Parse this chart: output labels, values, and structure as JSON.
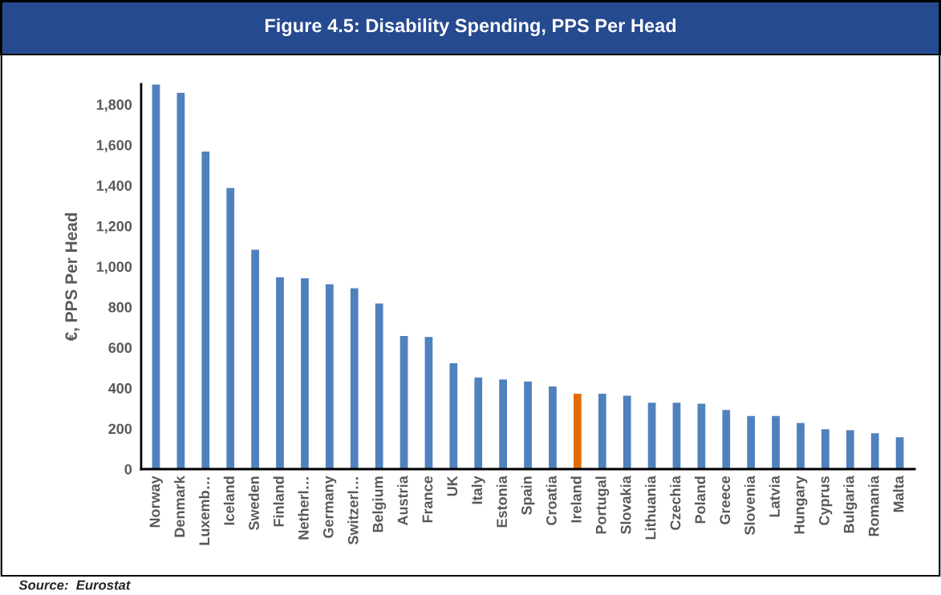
{
  "chart_data": {
    "type": "bar",
    "title": "Figure 4.5: Disability Spending, PPS Per Head",
    "ylabel": "€, PPS Per Head",
    "categories": [
      "Norway",
      "Denmark",
      "Luxemb…",
      "Iceland",
      "Sweden",
      "Finland",
      "Netherl…",
      "Germany",
      "Switzerl…",
      "Belgium",
      "Austria",
      "France",
      "UK",
      "Italy",
      "Estonia",
      "Spain",
      "Croatia",
      "Ireland",
      "Portugal",
      "Slovakia",
      "Lithuania",
      "Czechia",
      "Poland",
      "Greece",
      "Slovenia",
      "Latvia",
      "Hungary",
      "Cyprus",
      "Bulgaria",
      "Romania",
      "Malta"
    ],
    "values": [
      1900,
      1860,
      1570,
      1390,
      1085,
      950,
      945,
      915,
      895,
      820,
      660,
      655,
      525,
      455,
      445,
      435,
      410,
      375,
      375,
      365,
      330,
      330,
      325,
      295,
      265,
      265,
      230,
      200,
      195,
      180,
      160
    ],
    "colors": [
      "#4f81bd",
      "#4f81bd",
      "#4f81bd",
      "#4f81bd",
      "#4f81bd",
      "#4f81bd",
      "#4f81bd",
      "#4f81bd",
      "#4f81bd",
      "#4f81bd",
      "#4f81bd",
      "#4f81bd",
      "#4f81bd",
      "#4f81bd",
      "#4f81bd",
      "#4f81bd",
      "#4f81bd",
      "#e36c0a",
      "#4f81bd",
      "#4f81bd",
      "#4f81bd",
      "#4f81bd",
      "#4f81bd",
      "#4f81bd",
      "#4f81bd",
      "#4f81bd",
      "#4f81bd",
      "#4f81bd",
      "#4f81bd",
      "#4f81bd",
      "#4f81bd"
    ],
    "ylim": [
      0,
      1900
    ],
    "yticks": [
      0,
      {
        "value": 200,
        "label": "200"
      },
      {
        "value": 400,
        "label": "400"
      },
      {
        "value": 600,
        "label": "600"
      },
      {
        "value": 800,
        "label": "800"
      },
      {
        "value": 1000,
        "label": "1,000"
      },
      {
        "value": 1200,
        "label": "1,200"
      },
      {
        "value": 1400,
        "label": "1,400"
      },
      {
        "value": 1600,
        "label": "1,600"
      },
      {
        "value": 1800,
        "label": "1,800"
      }
    ],
    "grid": false,
    "legend": false,
    "annotations": [
      "Source:  Eurostat"
    ]
  }
}
